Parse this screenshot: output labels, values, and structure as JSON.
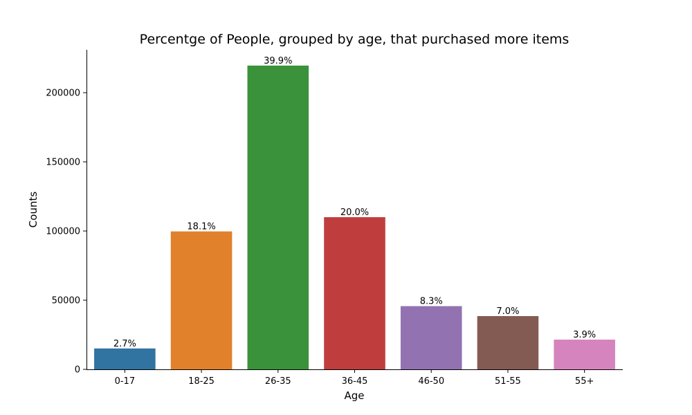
{
  "chart_data": {
    "type": "bar",
    "title": "Percentge of People, grouped by age, that purchased more items",
    "xlabel": "Age",
    "ylabel": "Counts",
    "categories": [
      "0-17",
      "18-25",
      "26-35",
      "36-45",
      "46-50",
      "51-55",
      "55+"
    ],
    "values": [
      15100,
      99700,
      219600,
      110000,
      45700,
      38500,
      21500
    ],
    "data_labels": [
      "2.7%",
      "18.1%",
      "39.9%",
      "20.0%",
      "8.3%",
      "7.0%",
      "3.9%"
    ],
    "colors": [
      "#3274a1",
      "#e1812c",
      "#3a923a",
      "#c03d3e",
      "#9372b2",
      "#845b53",
      "#d684bd"
    ],
    "ylim": [
      0,
      231000
    ],
    "yticks": [
      0,
      50000,
      100000,
      150000,
      200000
    ],
    "ytick_labels": [
      "0",
      "50000",
      "100000",
      "150000",
      "200000"
    ],
    "grid": false,
    "legend": "none"
  }
}
